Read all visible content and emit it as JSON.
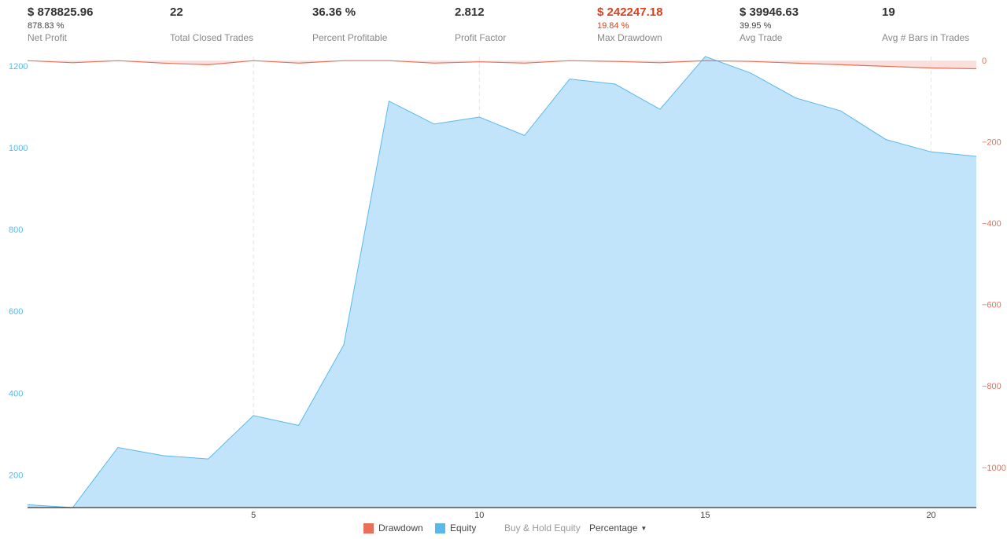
{
  "stats": [
    {
      "value": "$ 878825.96",
      "sub": "878.83 %",
      "label": "Net Profit",
      "red": false
    },
    {
      "value": "22",
      "sub": "",
      "label": "Total Closed Trades",
      "red": false
    },
    {
      "value": "36.36 %",
      "sub": "",
      "label": "Percent Profitable",
      "red": false
    },
    {
      "value": "2.812",
      "sub": "",
      "label": "Profit Factor",
      "red": false
    },
    {
      "value": "$ 242247.18",
      "sub": "19.84 %",
      "label": "Max Drawdown",
      "red": true
    },
    {
      "value": "$ 39946.63",
      "sub": "39.95 %",
      "label": "Avg Trade",
      "red": false
    },
    {
      "value": "19",
      "sub": "",
      "label": "Avg # Bars in Trades",
      "red": false
    }
  ],
  "legend": {
    "drawdown": "Drawdown",
    "equity": "Equity",
    "buy_hold": "Buy & Hold Equity",
    "percentage": "Percentage"
  },
  "colors": {
    "equity_fill": "#c1e4fb",
    "equity_line": "#5ab8ea",
    "drawdown_line": "#e8705a",
    "drawdown_fill": "#fbdcd6",
    "left_axis": "#5ab8ea",
    "right_axis": "#e8705a"
  },
  "chart_data": {
    "type": "area",
    "x_ticks": [
      5,
      10,
      15,
      20
    ],
    "left_axis_ticks": [
      200,
      400,
      600,
      800,
      1000,
      1200
    ],
    "right_axis_ticks": [
      0,
      -200,
      -400,
      -600,
      -800,
      -1000
    ],
    "xlim": [
      0,
      21
    ],
    "left_ylim": [
      120,
      1223
    ],
    "right_ylim": [
      -1099,
      10
    ],
    "grid": "vertical dashed at x ticks",
    "series": [
      {
        "name": "Equity",
        "axis": "left",
        "x": [
          0,
          1,
          2,
          3,
          4,
          5,
          6,
          7,
          8,
          9,
          10,
          11,
          12,
          13,
          14,
          15,
          16,
          17,
          18,
          19,
          20,
          21
        ],
        "values": [
          127,
          120,
          267,
          247,
          239,
          345,
          321,
          518,
          1114,
          1058,
          1075,
          1030,
          1168,
          1156,
          1094,
          1223,
          1183,
          1122,
          1090,
          1020,
          990,
          979
        ]
      },
      {
        "name": "Drawdown",
        "axis": "right",
        "x": [
          0,
          1,
          2,
          3,
          4,
          5,
          6,
          7,
          8,
          9,
          10,
          11,
          12,
          13,
          14,
          15,
          16,
          17,
          18,
          19,
          20,
          21
        ],
        "values": [
          0,
          -5,
          0,
          -6,
          -10,
          0,
          -6,
          0,
          0,
          -6,
          -3,
          -6,
          0,
          -2,
          -5,
          0,
          -2,
          -6,
          -10,
          -14,
          -18,
          -20
        ]
      }
    ]
  }
}
